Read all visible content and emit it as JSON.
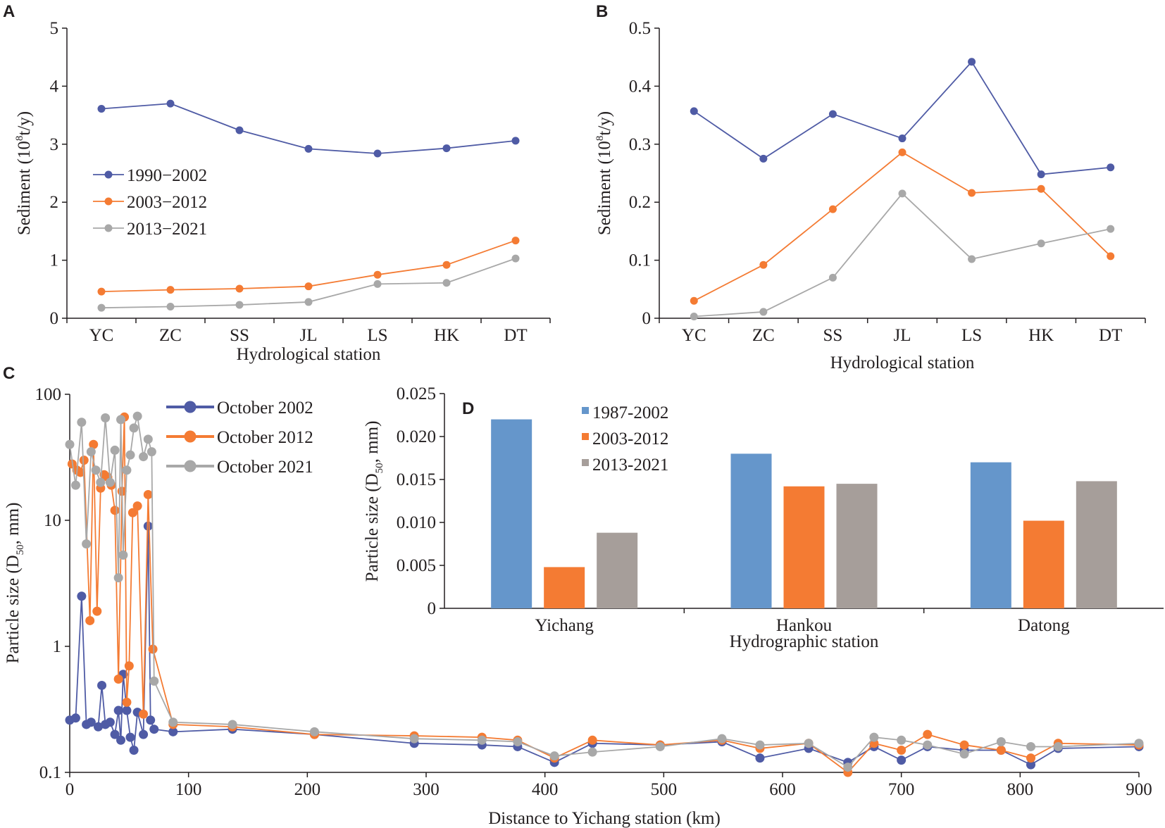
{
  "chart_data": [
    {
      "panel": "A",
      "type": "line",
      "categories": [
        "YC",
        "ZC",
        "SS",
        "JL",
        "LS",
        "HK",
        "DT"
      ],
      "series": [
        {
          "name": "1990−2002",
          "color": "#4f5ba5",
          "values": [
            3.61,
            3.7,
            3.24,
            2.92,
            2.84,
            2.93,
            3.06
          ]
        },
        {
          "name": "2003−2012",
          "color": "#f47b33",
          "values": [
            0.46,
            0.49,
            0.51,
            0.55,
            0.75,
            0.92,
            1.34
          ]
        },
        {
          "name": "2013−2021",
          "color": "#a8a8a8",
          "values": [
            0.18,
            0.2,
            0.23,
            0.28,
            0.59,
            0.61,
            1.03
          ]
        }
      ],
      "yticks": [
        "0",
        "1",
        "2",
        "3",
        "4",
        "5"
      ],
      "ylim": [
        0,
        5
      ],
      "xlabel": "Hydrological station",
      "ylabel": "Sediment (10",
      "ylabel_sup": "8",
      "ylabel_tail": "t/y)",
      "legend": "upper-left"
    },
    {
      "panel": "B",
      "type": "line",
      "categories": [
        "YC",
        "ZC",
        "SS",
        "JL",
        "LS",
        "HK",
        "DT"
      ],
      "series": [
        {
          "name": "1990−2002",
          "color": "#4f5ba5",
          "values": [
            0.357,
            0.275,
            0.352,
            0.31,
            0.442,
            0.248,
            0.26
          ]
        },
        {
          "name": "2003−2012",
          "color": "#f47b33",
          "values": [
            0.03,
            0.092,
            0.188,
            0.286,
            0.216,
            0.223,
            0.107
          ]
        },
        {
          "name": "2013−2021",
          "color": "#a8a8a8",
          "values": [
            0.003,
            0.011,
            0.07,
            0.215,
            0.102,
            0.129,
            0.154
          ]
        }
      ],
      "yticks": [
        "0",
        "0.1",
        "0.2",
        "0.3",
        "0.4",
        "0.5"
      ],
      "ylim": [
        0,
        0.5
      ],
      "xlabel": "Hydrological station",
      "ylabel": "Sediment (10",
      "ylabel_sup": "8",
      "ylabel_tail": "t/y)"
    },
    {
      "panel": "C",
      "type": "line",
      "yscale": "log",
      "xlim": [
        0,
        900
      ],
      "ylim": [
        0.1,
        100
      ],
      "xticks": [
        "0",
        "100",
        "200",
        "300",
        "400",
        "500",
        "600",
        "700",
        "800",
        "900"
      ],
      "yticks": [
        "0.1",
        "1",
        "10",
        "100"
      ],
      "xlabel": "Distance to Yichang station (km)",
      "ylabel": "Particle size  (D",
      "ylabel_sub": "50",
      "ylabel_tail": ", mm)",
      "legend": "top",
      "series": [
        {
          "name": "October 2002",
          "color": "#4f5ba5",
          "x": [
            0,
            5,
            10,
            14,
            18,
            24,
            27,
            30,
            34,
            38,
            41,
            43,
            45,
            48,
            51,
            54,
            57,
            62,
            66,
            68,
            71,
            87,
            137,
            206,
            290,
            347,
            377,
            408,
            440,
            497,
            549,
            581,
            622,
            655,
            677,
            700,
            722,
            753,
            784,
            809,
            832,
            900
          ],
          "y": [
            0.26,
            0.27,
            2.5,
            0.24,
            0.25,
            0.23,
            0.49,
            0.24,
            0.25,
            0.2,
            0.31,
            0.18,
            0.6,
            0.31,
            0.19,
            0.15,
            0.3,
            0.2,
            9.0,
            0.26,
            0.22,
            0.21,
            0.22,
            0.2,
            0.17,
            0.165,
            0.16,
            0.12,
            0.17,
            0.165,
            0.175,
            0.13,
            0.155,
            0.12,
            0.16,
            0.125,
            0.16,
            0.15,
            0.15,
            0.115,
            0.155,
            0.16
          ]
        },
        {
          "name": "October 2012",
          "color": "#f47b33",
          "x": [
            2,
            6,
            9,
            12,
            17,
            20,
            23,
            26,
            29,
            32,
            35,
            38,
            41,
            44,
            46,
            48,
            50,
            53,
            57,
            62,
            66,
            70,
            87,
            137,
            206,
            290,
            347,
            377,
            408,
            440,
            497,
            549,
            581,
            622,
            655,
            677,
            700,
            722,
            753,
            784,
            809,
            832,
            900
          ],
          "y": [
            28,
            25,
            24,
            30,
            1.6,
            40,
            1.9,
            18,
            23,
            22,
            19,
            12,
            0.55,
            17,
            66,
            0.36,
            0.7,
            11.5,
            13,
            0.29,
            16,
            0.95,
            0.24,
            0.23,
            0.2,
            0.195,
            0.19,
            0.18,
            0.13,
            0.18,
            0.165,
            0.18,
            0.155,
            0.17,
            0.1,
            0.17,
            0.15,
            0.2,
            0.165,
            0.15,
            0.13,
            0.17,
            0.165
          ]
        },
        {
          "name": "October 2021",
          "color": "#a8a8a8",
          "x": [
            0,
            5,
            10,
            14,
            18,
            22,
            26,
            30,
            34,
            38,
            41,
            43,
            45,
            48,
            51,
            54,
            57,
            62,
            66,
            69,
            71,
            87,
            137,
            206,
            290,
            347,
            377,
            408,
            440,
            497,
            549,
            581,
            622,
            655,
            677,
            700,
            722,
            753,
            784,
            809,
            832,
            900
          ],
          "y": [
            40,
            19,
            60,
            6.5,
            35,
            25,
            20,
            65,
            20,
            36,
            3.5,
            63,
            5.3,
            25,
            33,
            54,
            67,
            32,
            44,
            35,
            0.53,
            0.25,
            0.24,
            0.21,
            0.185,
            0.18,
            0.175,
            0.135,
            0.145,
            0.16,
            0.185,
            0.165,
            0.17,
            0.11,
            0.19,
            0.18,
            0.165,
            0.14,
            0.175,
            0.16,
            0.16,
            0.17
          ]
        }
      ]
    },
    {
      "panel": "D",
      "type": "bar",
      "categories": [
        "Yichang",
        "Hankou",
        "Datong"
      ],
      "series": [
        {
          "name": "1987-2002",
          "color": "#6596cb",
          "values": [
            0.022,
            0.018,
            0.017
          ]
        },
        {
          "name": "2003-2012",
          "color": "#f47b33",
          "values": [
            0.0048,
            0.0142,
            0.0102
          ]
        },
        {
          "name": "2013-2021",
          "color": "#a69e9a",
          "values": [
            0.0088,
            0.0145,
            0.0148
          ]
        }
      ],
      "yticks": [
        "0",
        "0.005",
        "0.010",
        "0.015",
        "0.020",
        "0.025"
      ],
      "ylim": [
        0,
        0.025
      ],
      "xlabel": "Hydrographic station",
      "ylabel": "Particle size  (D",
      "ylabel_sub": "50",
      "ylabel_tail": ", mm)",
      "legend": "top"
    }
  ]
}
